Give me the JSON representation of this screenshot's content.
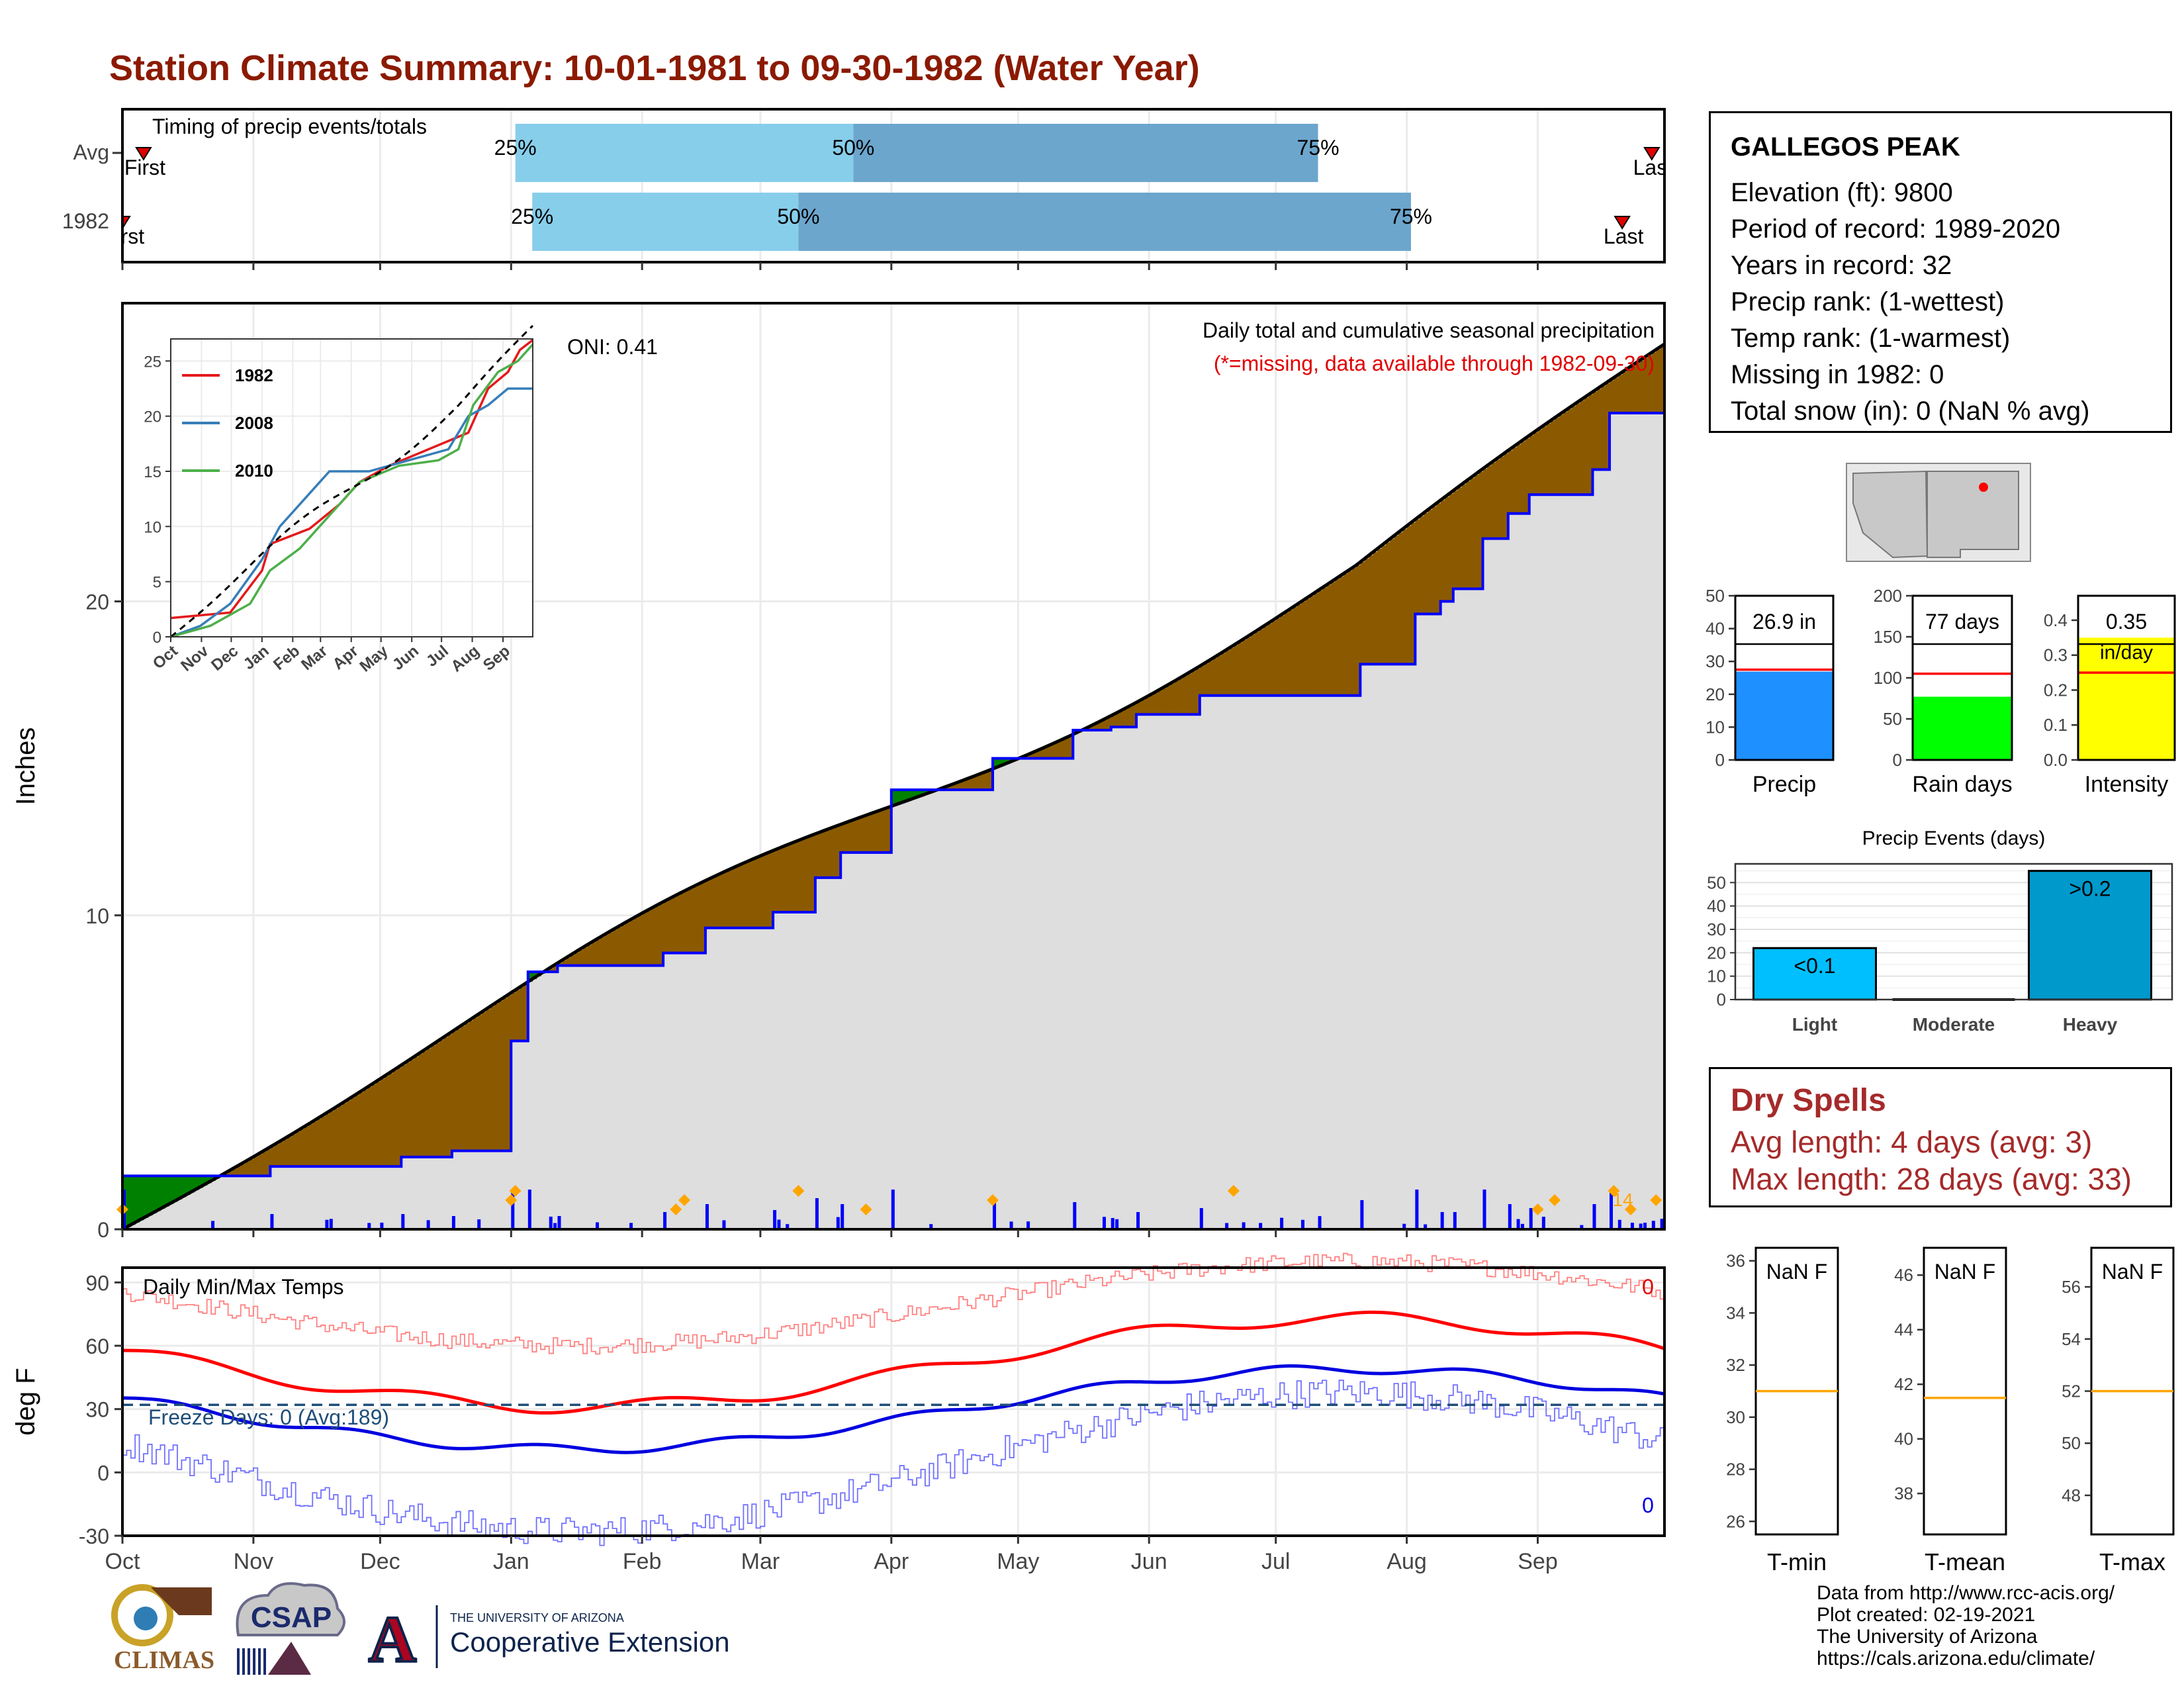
{
  "title": "Station Climate Summary: 10-01-1981 to 09-30-1982 (Water Year)",
  "station": {
    "name": "GALLEGOS PEAK",
    "lines": [
      "Elevation (ft): 9800",
      "Period of record: 1989-2020",
      "Years in record: 32",
      "Precip rank:  (1-wettest)",
      "Temp rank:  (1-warmest)",
      "Missing in 1982: 0",
      "Total snow (in): 0 (NaN % avg)"
    ]
  },
  "timing": {
    "label": "Timing of precip events/totals",
    "rows": [
      {
        "name": "Avg",
        "first_label": "First",
        "last_label": "Last",
        "first_day": 5,
        "last_day": 362,
        "p25_day": 93,
        "p50_day": 173,
        "p75_day": 283
      },
      {
        "name": "1982",
        "first_label": "First",
        "last_label": "Last",
        "first_day": 0,
        "last_day": 355,
        "p25_day": 97,
        "p50_day": 160,
        "p75_day": 305
      }
    ],
    "pct_labels": [
      "25%",
      "50%",
      "75%"
    ]
  },
  "months": [
    "Oct",
    "Nov",
    "Dec",
    "Jan",
    "Feb",
    "Mar",
    "Apr",
    "May",
    "Jun",
    "Jul",
    "Aug",
    "Sep"
  ],
  "month_start_days": [
    0,
    31,
    61,
    92,
    123,
    151,
    182,
    212,
    243,
    273,
    304,
    335
  ],
  "precip_panel": {
    "ylabel": "Inches",
    "caption": "Daily total and cumulative seasonal precipitation",
    "missing_note": "(*=missing, data available through 1982-09-30)",
    "oni": "ONI: 0.41",
    "yticks": [
      0,
      10,
      20
    ],
    "ylim": [
      0,
      29.5
    ],
    "last_day_count": "14",
    "colors": {
      "above": "#008000",
      "below": "#8B5A00",
      "avg_fill": "#DEDEDE",
      "cum_line": "#0000FF",
      "bars": "#0000FF",
      "event": "#FFA500"
    }
  },
  "inset": {
    "yticks": [
      0,
      5,
      10,
      15,
      20,
      25
    ],
    "xlabels": [
      "Oct",
      "Nov",
      "Dec",
      "Jan",
      "Feb",
      "Mar",
      "Apr",
      "May",
      "Jun",
      "Jul",
      "Aug",
      "Sep"
    ],
    "legend": [
      {
        "name": "1982",
        "color": "#E41A1C"
      },
      {
        "name": "2008",
        "color": "#377EB8"
      },
      {
        "name": "2010",
        "color": "#4DAF4A"
      }
    ]
  },
  "temp_panel": {
    "ylabel": "deg F",
    "caption": "Daily Min/Max Temps",
    "freeze": "Freeze Days: 0 (Avg:189)",
    "yticks": [
      -30,
      0,
      30,
      60,
      90
    ],
    "max_count": "0",
    "min_count": "0",
    "freeze_line": 32
  },
  "summary_bars": [
    {
      "label": "Precip",
      "value_label": "26.9 in",
      "value": 26.9,
      "avg": 27.5,
      "ymax": 50,
      "yticks": [
        0,
        10,
        20,
        30,
        40,
        50
      ],
      "color": "#1E90FF"
    },
    {
      "label": "Rain days",
      "value_label": "77 days",
      "value": 77,
      "avg": 105,
      "ymax": 200,
      "yticks": [
        0,
        50,
        100,
        150,
        200
      ],
      "color": "#00FF00"
    },
    {
      "label": "Intensity",
      "value_label": "0.35",
      "unit_label": "in/day",
      "value": 0.35,
      "avg": 0.25,
      "ymax": 0.47,
      "yticks": [
        0.0,
        0.1,
        0.2,
        0.3,
        0.4
      ],
      "color": "#FFFF00"
    }
  ],
  "events": {
    "title": "Precip Events (days)",
    "yticks": [
      0,
      10,
      20,
      30,
      40,
      50
    ],
    "bars": [
      {
        "label": "Light",
        "value": 22,
        "text": "<0.1",
        "color": "#00BFFF"
      },
      {
        "label": "Moderate",
        "value": 0,
        "text": "",
        "color": "#00BFFF"
      },
      {
        "label": "Heavy",
        "value": 55,
        "text": ">0.2",
        "color": "#0099CC"
      }
    ]
  },
  "dry_spells": {
    "title": "Dry Spells",
    "avg_line": "Avg length: 4 days (avg: 3)",
    "max_line": "Max length: 28 days (avg: 33)"
  },
  "temp_boxes": [
    {
      "label": "T-min",
      "value": "NaN F",
      "yticks": [
        26,
        28,
        30,
        32,
        34,
        36
      ],
      "ylim": [
        25.5,
        36.5
      ],
      "avg": 31
    },
    {
      "label": "T-mean",
      "value": "NaN F",
      "yticks": [
        38,
        40,
        42,
        44,
        46
      ],
      "ylim": [
        36.5,
        47
      ],
      "avg": 41.5
    },
    {
      "label": "T-max",
      "value": "NaN F",
      "yticks": [
        48,
        50,
        52,
        54,
        56
      ],
      "ylim": [
        46.5,
        57.5
      ],
      "avg": 52
    }
  ],
  "footer": [
    "Data from http://www.rcc-acis.org/",
    "Plot created: 02-19-2021",
    "The University of Arizona",
    "https://cals.arizona.edu/climate/"
  ],
  "logos": {
    "climas": "CLIMAS",
    "csap": "CSAP",
    "ua_small": "THE UNIVERSITY OF ARIZONA",
    "ua_big": "Cooperative Extension",
    "ua_letter": "A"
  }
}
